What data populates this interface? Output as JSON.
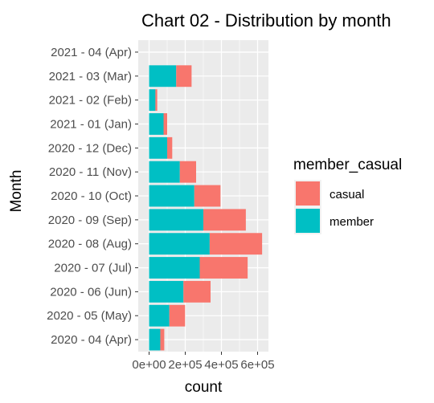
{
  "chart_data": {
    "type": "bar",
    "orientation": "horizontal",
    "stacked": true,
    "title": "Chart 02 - Distribution by month",
    "xlabel": "count",
    "ylabel": "Month",
    "categories": [
      "2020 - 04 (Apr)",
      "2020 - 05 (May)",
      "2020 - 06 (Jun)",
      "2020 - 07 (Jul)",
      "2020 - 08 (Aug)",
      "2020 - 09 (Sep)",
      "2020 - 10 (Oct)",
      "2020 - 11 (Nov)",
      "2020 - 12 (Dec)",
      "2021 - 01 (Jan)",
      "2021 - 02 (Feb)",
      "2021 - 03 (Mar)",
      "2021 - 04 (Apr)"
    ],
    "series": [
      {
        "name": "member",
        "color": "#00BFC4",
        "values": [
          62000,
          112000,
          190000,
          280000,
          335000,
          300000,
          250000,
          170000,
          100000,
          80000,
          35000,
          150000,
          0
        ]
      },
      {
        "name": "casual",
        "color": "#F8766D",
        "values": [
          22000,
          87000,
          150000,
          265000,
          290000,
          235000,
          145000,
          90000,
          28000,
          20000,
          10000,
          85000,
          0
        ]
      }
    ],
    "xticks": [
      "0e+00",
      "2e+05",
      "4e+05",
      "6e+05"
    ],
    "xtick_values": [
      0,
      200000,
      400000,
      600000
    ],
    "xlim": [
      -60000,
      660000
    ],
    "legend": {
      "title": "member_casual",
      "position": "right",
      "entries": [
        "casual",
        "member"
      ]
    },
    "panel_background": "#EBEBEB",
    "grid": true
  }
}
